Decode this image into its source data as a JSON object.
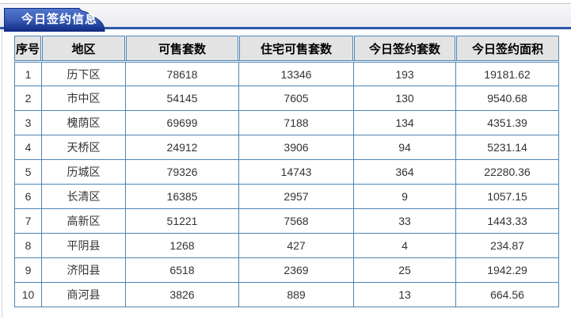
{
  "header": {
    "title": "今日签约信息"
  },
  "colors": {
    "tab_gradient_top": "#5277cd",
    "tab_gradient_bottom": "#122c85",
    "tab_border": "#0d2b80",
    "toolbar_rule_blue": "#2f57a8",
    "table_border": "#4e84b4",
    "header_row_bg": "#e3e3e3",
    "cell_text": "#333333"
  },
  "table": {
    "columns": [
      "序号",
      "地区",
      "可售套数",
      "住宅可售套数",
      "今日签约套数",
      "今日签约面积"
    ],
    "rows": [
      [
        "1",
        "历下区",
        "78618",
        "13346",
        "193",
        "19181.62"
      ],
      [
        "2",
        "市中区",
        "54145",
        "7605",
        "130",
        "9540.68"
      ],
      [
        "3",
        "槐荫区",
        "69699",
        "7188",
        "134",
        "4351.39"
      ],
      [
        "4",
        "天桥区",
        "24912",
        "3906",
        "94",
        "5231.14"
      ],
      [
        "5",
        "历城区",
        "79326",
        "14743",
        "364",
        "22280.36"
      ],
      [
        "6",
        "长清区",
        "16385",
        "2957",
        "9",
        "1057.15"
      ],
      [
        "7",
        "高新区",
        "51221",
        "7568",
        "33",
        "1443.33"
      ],
      [
        "8",
        "平阴县",
        "1268",
        "427",
        "4",
        "234.87"
      ],
      [
        "9",
        "济阳县",
        "6518",
        "2369",
        "25",
        "1942.29"
      ],
      [
        "10",
        "商河县",
        "3826",
        "889",
        "13",
        "664.56"
      ]
    ]
  }
}
